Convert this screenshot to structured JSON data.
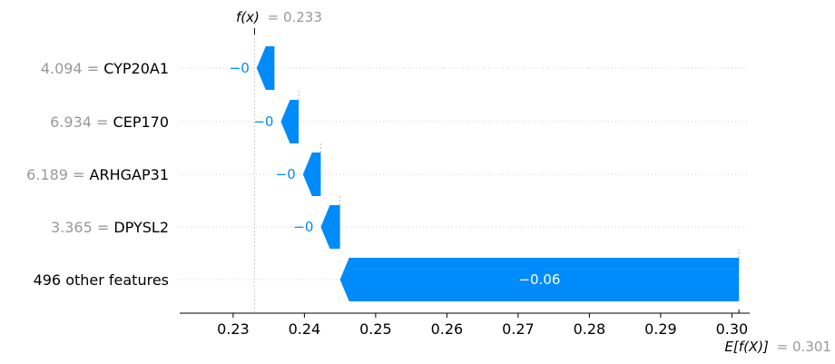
{
  "chart_data": {
    "type": "waterfall",
    "fx_label": "f(x)",
    "fx_value": 0.233,
    "fx_value_text": "= 0.233",
    "efx_label": "E[f(X)]",
    "efx_value": 0.301,
    "efx_value_text": "= 0.301",
    "features": [
      {
        "value": "4.094",
        "name": "CYP20A1",
        "start": 0.2358,
        "end": 0.2333,
        "label": "−0"
      },
      {
        "value": "6.934",
        "name": "CEP170",
        "start": 0.2392,
        "end": 0.2367,
        "label": "−0"
      },
      {
        "value": "6.189",
        "name": "ARHGAP31",
        "start": 0.2423,
        "end": 0.2398,
        "label": "−0"
      },
      {
        "value": "3.365",
        "name": "DPYSL2",
        "start": 0.245,
        "end": 0.2423,
        "label": "−0"
      },
      {
        "value": "",
        "name": "496 other features",
        "start": 0.301,
        "end": 0.245,
        "label": "−0.06"
      }
    ],
    "xticks": [
      0.23,
      0.24,
      0.25,
      0.26,
      0.27,
      0.28,
      0.29,
      0.3
    ],
    "xtick_labels": [
      "0.23",
      "0.24",
      "0.25",
      "0.26",
      "0.27",
      "0.28",
      "0.29",
      "0.30"
    ],
    "xlim": [
      0.2225,
      0.3025
    ],
    "colors": {
      "negative": "#008bfb",
      "value_text": "#999999",
      "grid": "#cccccc"
    }
  }
}
